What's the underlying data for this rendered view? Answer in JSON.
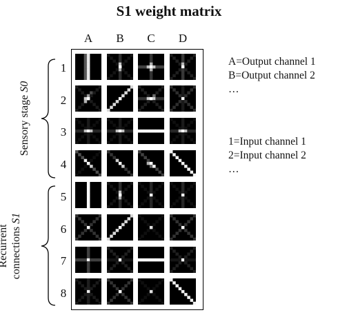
{
  "title": "S1 weight matrix",
  "columns": [
    "A",
    "B",
    "C",
    "D"
  ],
  "rows": [
    "1",
    "2",
    "3",
    "4",
    "5",
    "6",
    "7",
    "8"
  ],
  "legend": {
    "output": [
      "A=Output channel 1",
      "B=Output channel 2",
      "…"
    ],
    "input": [
      "1=Input channel 1",
      "2=Input channel 2",
      "…"
    ]
  },
  "groups": {
    "sensory_prefix": "Sensory stage ",
    "sensory_italic": "S0",
    "recurrent_line1": "Recurrent",
    "recurrent_line2_prefix": "connections ",
    "recurrent_line2_italic": "S1"
  }
}
